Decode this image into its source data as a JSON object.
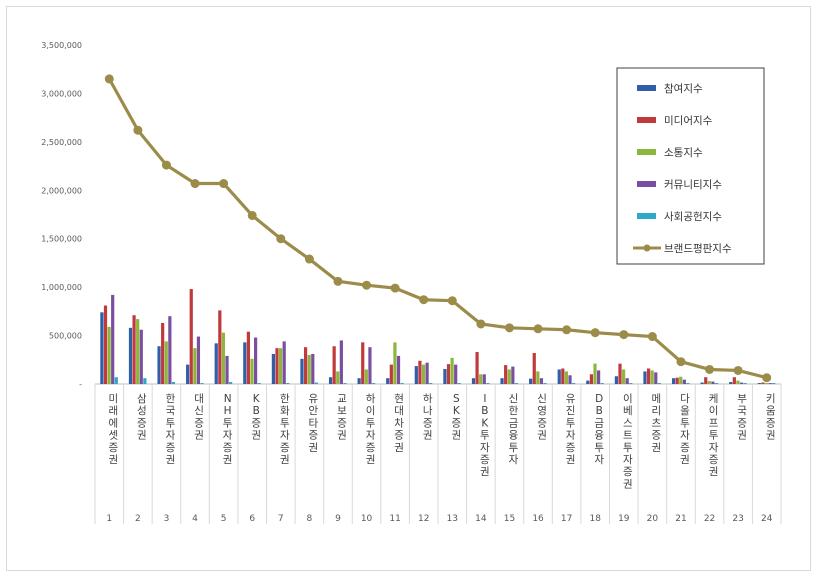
{
  "chart_data": {
    "type": "bar",
    "categories": [
      "미래에셋증권",
      "삼성증권",
      "한국투자증권",
      "대신증권",
      "NH투자증권",
      "KB증권",
      "한화투자증권",
      "유안타증권",
      "교보증권",
      "하이투자증권",
      "현대차증권",
      "하나증권",
      "SK증권",
      "IBK투자증권",
      "신한금융투자",
      "신영증권",
      "유진투자증권",
      "DB금융투자",
      "이베스트투자증권",
      "메리츠증권",
      "다올투자증권",
      "케이프투자증권",
      "부국증권",
      "키움증권"
    ],
    "index_labels": [
      "1",
      "2",
      "3",
      "4",
      "5",
      "6",
      "7",
      "8",
      "9",
      "10",
      "11",
      "12",
      "13",
      "14",
      "15",
      "16",
      "17",
      "18",
      "19",
      "20",
      "21",
      "22",
      "23",
      "24"
    ],
    "ylim": [
      0,
      3500000
    ],
    "yticks": [
      0,
      500000,
      1000000,
      1500000,
      2000000,
      2500000,
      3000000,
      3500000
    ],
    "ytick_labels": [
      "-",
      "500,000",
      "1,000,000",
      "1,500,000",
      "2,000,000",
      "2,500,000",
      "3,000,000",
      "3,500,000"
    ],
    "legend_position": "top-right",
    "series": [
      {
        "name": "참여지수",
        "kind": "bar",
        "color": "#2e5fa8",
        "values": [
          740000,
          580000,
          390000,
          200000,
          420000,
          430000,
          310000,
          260000,
          70000,
          60000,
          60000,
          185000,
          155000,
          60000,
          60000,
          55000,
          150000,
          35000,
          80000,
          130000,
          60000,
          15000,
          20000,
          10000
        ]
      },
      {
        "name": "미디어지수",
        "kind": "bar",
        "color": "#c0393b",
        "values": [
          810000,
          710000,
          630000,
          980000,
          760000,
          540000,
          370000,
          380000,
          390000,
          430000,
          200000,
          240000,
          205000,
          330000,
          195000,
          320000,
          160000,
          100000,
          210000,
          160000,
          65000,
          70000,
          70000,
          15000
        ]
      },
      {
        "name": "소통지수",
        "kind": "bar",
        "color": "#8db63c",
        "values": [
          590000,
          670000,
          440000,
          370000,
          530000,
          260000,
          370000,
          300000,
          130000,
          150000,
          430000,
          200000,
          270000,
          100000,
          150000,
          130000,
          130000,
          210000,
          150000,
          140000,
          75000,
          30000,
          35000,
          10000
        ]
      },
      {
        "name": "커뮤니티지수",
        "kind": "bar",
        "color": "#7a4fa0",
        "values": [
          920000,
          560000,
          700000,
          490000,
          290000,
          480000,
          440000,
          310000,
          450000,
          380000,
          290000,
          220000,
          200000,
          100000,
          180000,
          60000,
          90000,
          140000,
          60000,
          120000,
          45000,
          25000,
          15000,
          10000
        ]
      },
      {
        "name": "사회공헌지수",
        "kind": "bar",
        "color": "#2fa7c6",
        "values": [
          70000,
          60000,
          20000,
          10000,
          20000,
          10000,
          10000,
          15000,
          10000,
          10000,
          10000,
          10000,
          10000,
          10000,
          10000,
          10000,
          10000,
          10000,
          10000,
          10000,
          10000,
          10000,
          10000,
          10000
        ]
      },
      {
        "name": "브랜드평판지수",
        "kind": "line",
        "color": "#9b8c4a",
        "values": [
          3150000,
          2620000,
          2260000,
          2070000,
          2070000,
          1740000,
          1500000,
          1290000,
          1060000,
          1020000,
          990000,
          870000,
          860000,
          620000,
          580000,
          570000,
          560000,
          530000,
          510000,
          490000,
          230000,
          150000,
          140000,
          65000
        ]
      }
    ]
  }
}
